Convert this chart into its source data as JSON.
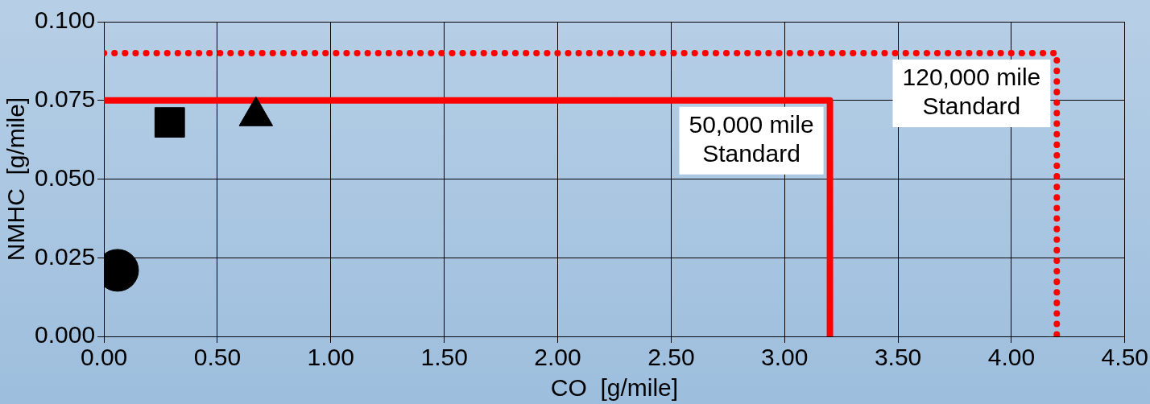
{
  "chart_data": {
    "type": "scatter",
    "xlabel": "CO  [g/mile]",
    "ylabel": "NMHC  [g/mile]",
    "xlim": [
      0,
      4.5
    ],
    "xticks": [
      {
        "value": 0,
        "label": "0.00"
      },
      {
        "value": 0.5,
        "label": "0.50"
      },
      {
        "value": 1,
        "label": "1.00"
      },
      {
        "value": 1.5,
        "label": "1.50"
      },
      {
        "value": 2,
        "label": "2.00"
      },
      {
        "value": 2.5,
        "label": "2.50"
      },
      {
        "value": 3,
        "label": "3.00"
      },
      {
        "value": 3.5,
        "label": "3.50"
      },
      {
        "value": 4,
        "label": "4.00"
      },
      {
        "value": 4.5,
        "label": "4.50"
      }
    ],
    "ylim": [
      0,
      0.1
    ],
    "yticks": [
      {
        "value": 0,
        "label": "0.000"
      },
      {
        "value": 0.025,
        "label": "0.025"
      },
      {
        "value": 0.05,
        "label": "0.050"
      },
      {
        "value": 0.075,
        "label": "0.075"
      },
      {
        "value": 0.1,
        "label": "0.100"
      }
    ],
    "grid": true,
    "legend": false,
    "series": [
      {
        "type": "scatter",
        "marker": "circle",
        "color": "#000000",
        "x": [
          0.06
        ],
        "values": [
          0.021
        ]
      },
      {
        "type": "scatter",
        "marker": "square",
        "color": "#000000",
        "x": [
          0.29
        ],
        "values": [
          0.068
        ]
      },
      {
        "type": "scatter",
        "marker": "triangle",
        "color": "#000000",
        "x": [
          0.67
        ],
        "values": [
          0.07
        ]
      },
      {
        "type": "line",
        "name": "50,000 mile Standard",
        "line_style": "solid",
        "color": "#ff0000",
        "x": [
          0,
          3.2,
          3.2
        ],
        "values": [
          0.075,
          0.075,
          0
        ]
      },
      {
        "type": "line",
        "name": "120,000 mile Standard",
        "line_style": "dotted",
        "color": "#ff0000",
        "x": [
          0,
          4.2,
          4.2
        ],
        "values": [
          0.09,
          0.09,
          0
        ]
      }
    ]
  }
}
